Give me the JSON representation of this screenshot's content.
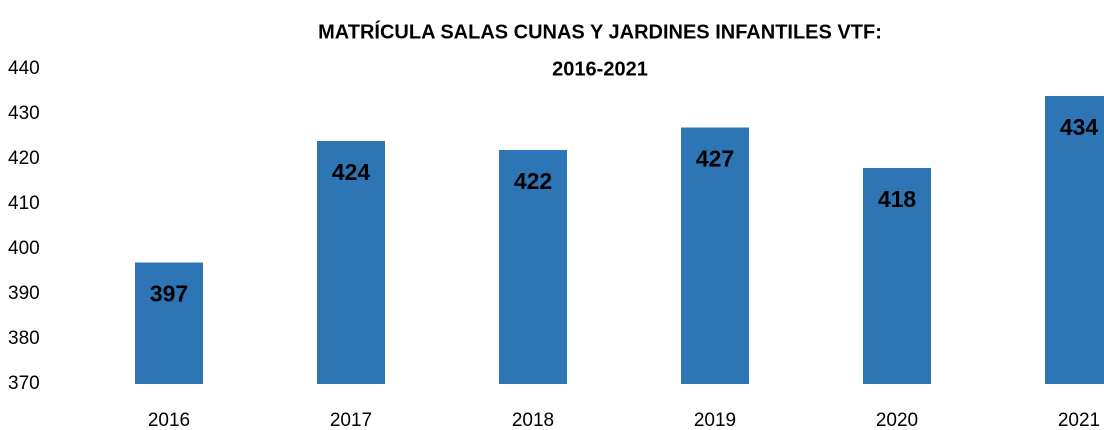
{
  "chart_data": {
    "type": "bar",
    "title": [
      "MATRÍCULA SALAS CUNAS Y JARDINES INFANTILES  VTF:",
      "2016-2021"
    ],
    "categories": [
      "2016",
      "2017",
      "2018",
      "2019",
      "2020",
      "2021"
    ],
    "values": [
      397,
      424,
      422,
      427,
      418,
      434
    ],
    "color": "#2e75b6",
    "ylim": [
      370,
      440
    ],
    "yticks": [
      370,
      380,
      390,
      400,
      410,
      420,
      430,
      440
    ],
    "grid": false
  }
}
